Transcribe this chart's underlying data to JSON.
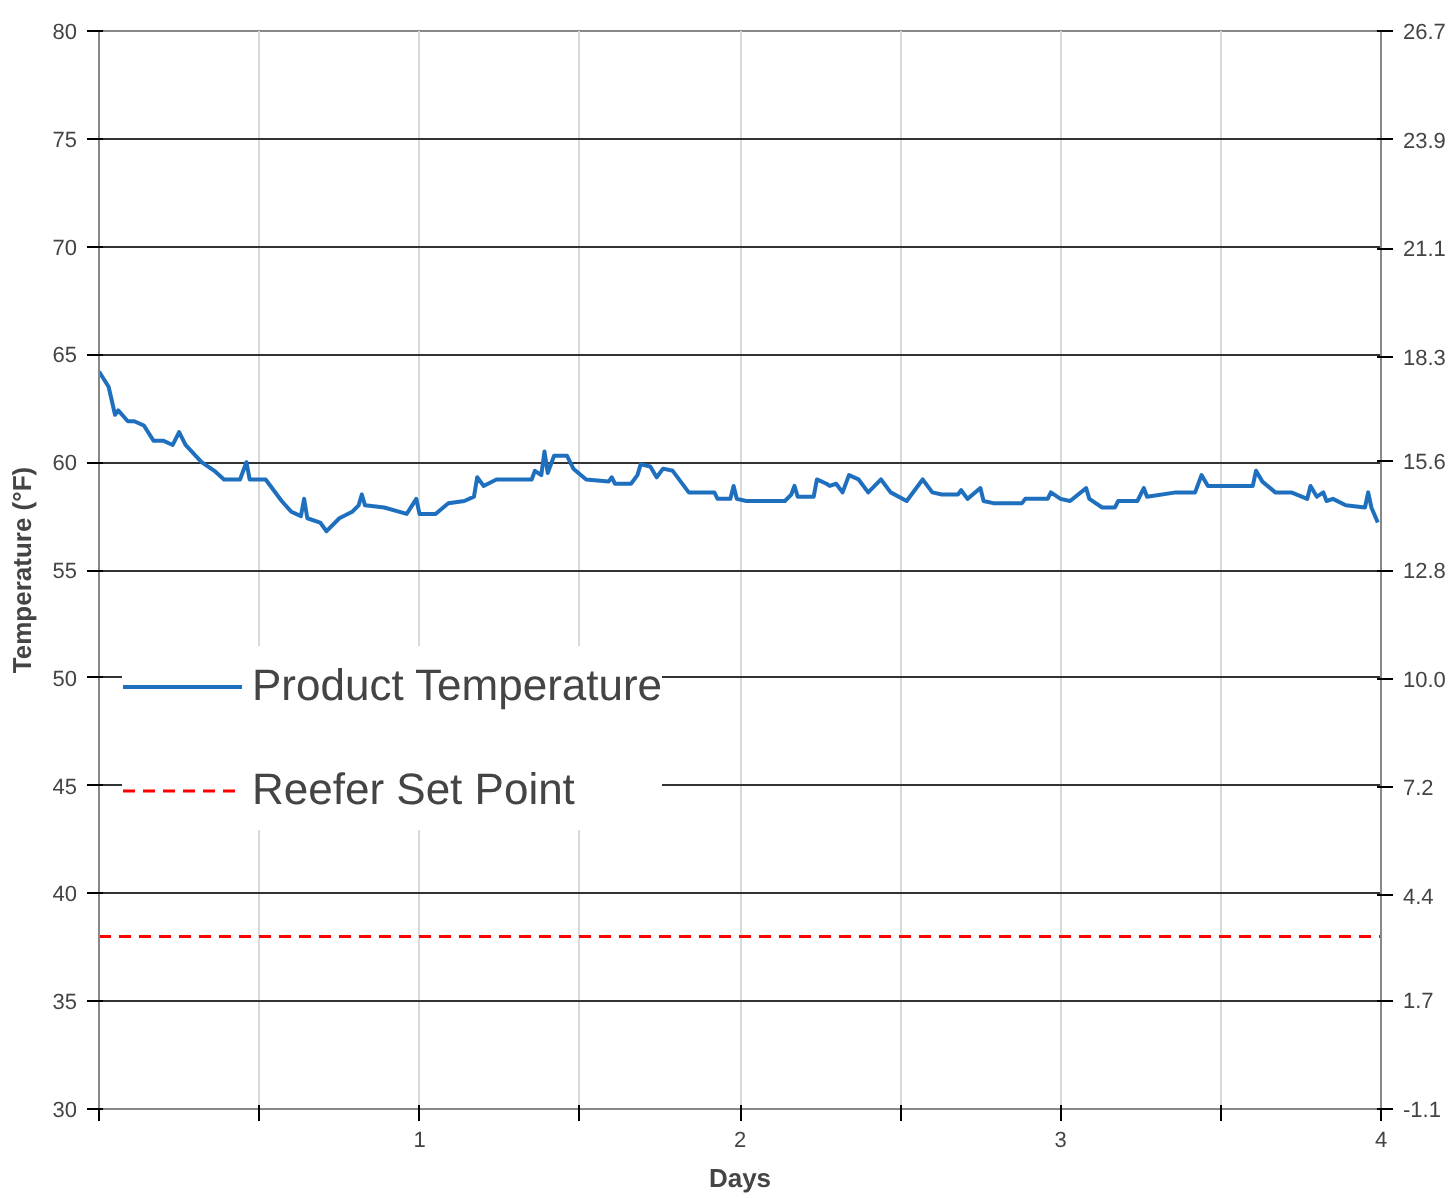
{
  "chart_data": {
    "type": "line",
    "xlabel": "Days",
    "ylabel": "Temperature (°F)",
    "xlim": [
      0,
      4
    ],
    "xticks": [
      {
        "value": 0,
        "label": null
      },
      {
        "value": 0.5,
        "label": null
      },
      1,
      {
        "value": 1.5,
        "label": null
      },
      2,
      {
        "value": 2.5,
        "label": null
      },
      3,
      {
        "value": 3.5,
        "label": null
      },
      4
    ],
    "ylim": [
      30,
      80
    ],
    "yticks": [
      30,
      35,
      40,
      45,
      50,
      55,
      60,
      65,
      70,
      75,
      80
    ],
    "y2lim": [
      -1.1,
      26.7
    ],
    "y2ticks": [
      -1.1,
      1.7,
      4.4,
      7.2,
      {
        "value": 10.0,
        "label": "10.0"
      },
      12.8,
      15.6,
      18.3,
      21.1,
      23.9,
      26.7
    ],
    "grid": true,
    "legend": "left",
    "series": [
      {
        "name": "Product Temperature",
        "color": "#1f6fbf",
        "line_style": "solid",
        "x": [
          0,
          0.03,
          0.05,
          0.06,
          0.09,
          0.11,
          0.14,
          0.17,
          0.2,
          0.23,
          0.25,
          0.27,
          0.32,
          0.36,
          0.39,
          0.44,
          0.46,
          0.47,
          0.52,
          0.57,
          0.6,
          0.63,
          0.64,
          0.65,
          0.69,
          0.71,
          0.75,
          0.79,
          0.81,
          0.82,
          0.83,
          0.89,
          0.96,
          0.99,
          1.0,
          1.05,
          1.09,
          1.14,
          1.17,
          1.18,
          1.2,
          1.24,
          1.35,
          1.36,
          1.38,
          1.39,
          1.4,
          1.42,
          1.46,
          1.48,
          1.52,
          1.59,
          1.6,
          1.61,
          1.66,
          1.68,
          1.69,
          1.72,
          1.74,
          1.76,
          1.79,
          1.84,
          1.92,
          1.93,
          1.97,
          1.98,
          1.99,
          2.02,
          2.14,
          2.16,
          2.17,
          2.18,
          2.23,
          2.24,
          2.27,
          2.28,
          2.3,
          2.32,
          2.34,
          2.37,
          2.4,
          2.44,
          2.47,
          2.52,
          2.57,
          2.6,
          2.63,
          2.68,
          2.69,
          2.71,
          2.75,
          2.76,
          2.79,
          2.88,
          2.89,
          2.96,
          2.97,
          3.0,
          3.03,
          3.08,
          3.09,
          3.13,
          3.17,
          3.18,
          3.24,
          3.26,
          3.27,
          3.36,
          3.42,
          3.44,
          3.46,
          3.6,
          3.61,
          3.63,
          3.67,
          3.72,
          3.77,
          3.78,
          3.8,
          3.82,
          3.83,
          3.85,
          3.89,
          3.95,
          3.96,
          3.97,
          3.99
        ],
        "values": [
          64.2,
          63.5,
          62.2,
          62.4,
          61.9,
          61.9,
          61.7,
          61.0,
          61.0,
          60.8,
          61.4,
          60.8,
          60.0,
          59.6,
          59.2,
          59.2,
          60.0,
          59.2,
          59.2,
          58.2,
          57.7,
          57.5,
          58.3,
          57.4,
          57.2,
          56.8,
          57.4,
          57.7,
          58.0,
          58.5,
          58.0,
          57.9,
          57.6,
          58.3,
          57.6,
          57.6,
          58.1,
          58.2,
          58.4,
          59.3,
          58.9,
          59.2,
          59.2,
          59.6,
          59.4,
          60.5,
          59.5,
          60.3,
          60.3,
          59.7,
          59.2,
          59.1,
          59.3,
          59.0,
          59.0,
          59.4,
          59.9,
          59.8,
          59.3,
          59.7,
          59.6,
          58.6,
          58.6,
          58.3,
          58.3,
          58.9,
          58.3,
          58.2,
          58.2,
          58.5,
          58.9,
          58.4,
          58.4,
          59.2,
          59.0,
          58.9,
          59.0,
          58.6,
          59.4,
          59.2,
          58.6,
          59.2,
          58.6,
          58.2,
          59.2,
          58.6,
          58.5,
          58.5,
          58.7,
          58.3,
          58.8,
          58.2,
          58.1,
          58.1,
          58.3,
          58.3,
          58.6,
          58.3,
          58.2,
          58.8,
          58.3,
          57.9,
          57.9,
          58.2,
          58.2,
          58.8,
          58.4,
          58.6,
          58.6,
          59.4,
          58.9,
          58.9,
          59.6,
          59.1,
          58.6,
          58.6,
          58.3,
          58.9,
          58.4,
          58.6,
          58.2,
          58.3,
          58.0,
          57.9,
          58.6,
          57.9,
          57.2
        ]
      },
      {
        "name": "Reefer Set Point",
        "color": "#ff0000",
        "line_style": "dashed",
        "x": [
          0,
          4
        ],
        "values": [
          38,
          38
        ]
      }
    ]
  }
}
